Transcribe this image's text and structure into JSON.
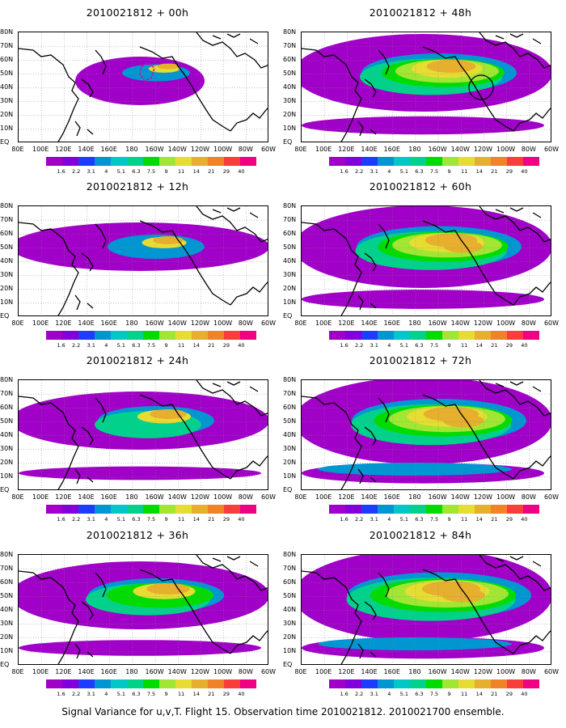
{
  "caption": "Signal Variance for u,v,T. Flight 15. Observation time 2010021812. 2010021700 ensemble.",
  "lat_labels": [
    "80N",
    "70N",
    "60N",
    "50N",
    "40N",
    "30N",
    "20N",
    "10N",
    "EQ"
  ],
  "lon_labels": [
    "80E",
    "100E",
    "120E",
    "140E",
    "160E",
    "180",
    "160W",
    "140W",
    "120W",
    "100W",
    "80W",
    "60W"
  ],
  "colorbar": {
    "labels": [
      "1.6",
      "2.2",
      "3.1",
      "4",
      "5.1",
      "6.3",
      "7.5",
      "9",
      "11",
      "14",
      "21",
      "29",
      "40"
    ],
    "colors": [
      "#a000c8",
      "#8200dc",
      "#1e3cff",
      "#0096d2",
      "#00c8c8",
      "#00d28c",
      "#00dc00",
      "#a0e632",
      "#e6dc32",
      "#e6af2d",
      "#f08228",
      "#fa3c3c",
      "#f00082"
    ]
  },
  "panels": [
    {
      "title": "2010021812 + 00h",
      "intensity": 0.35,
      "marker": "outline"
    },
    {
      "title": "2010021812 + 12h",
      "intensity": 0.5
    },
    {
      "title": "2010021812 + 24h",
      "intensity": 0.6
    },
    {
      "title": "2010021812 + 36h",
      "intensity": 0.7
    },
    {
      "title": "2010021812 + 48h",
      "intensity": 0.8,
      "marker": "circle"
    },
    {
      "title": "2010021812 + 60h",
      "intensity": 0.85
    },
    {
      "title": "2010021812 + 72h",
      "intensity": 0.9
    },
    {
      "title": "2010021812 + 84h",
      "intensity": 0.95
    }
  ]
}
